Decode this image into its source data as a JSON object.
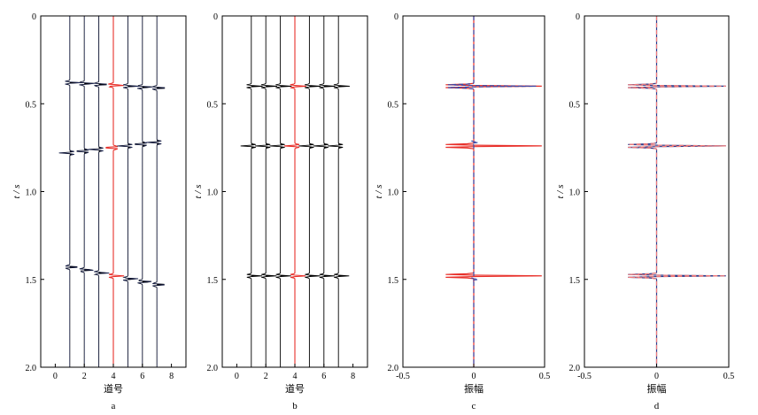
{
  "chart_data": [
    {
      "type": "line",
      "panel_label": "a",
      "xlabel": "道号",
      "ylabel": "t / s",
      "xlim": [
        -1,
        9
      ],
      "ylim": [
        2.0,
        0
      ],
      "x_ticks": [
        "0",
        "2",
        "4",
        "6",
        "8"
      ],
      "y_ticks": [
        "0",
        "0.5",
        "1.0",
        "1.5",
        "2.0"
      ],
      "traces": [
        1,
        2,
        3,
        4,
        5,
        6,
        7
      ],
      "highlight_trace": 4,
      "events": [
        {
          "t_start": 0.38,
          "t_end": 0.41,
          "amp": 0.95,
          "width": 0.018
        },
        {
          "t_start": 0.78,
          "t_end": 0.72,
          "amp": -0.9,
          "width": 0.018
        },
        {
          "t_start": 1.43,
          "t_end": 1.53,
          "amp": 0.9,
          "width": 0.018
        }
      ],
      "colors": {
        "trace": "#000000",
        "highlight": "#e8302a",
        "outline": "#2e3d8c"
      }
    },
    {
      "type": "line",
      "panel_label": "b",
      "xlabel": "道号",
      "ylabel": "t / s",
      "xlim": [
        -1,
        9
      ],
      "ylim": [
        2.0,
        0
      ],
      "x_ticks": [
        "0",
        "2",
        "4",
        "6",
        "8"
      ],
      "y_ticks": [
        "0",
        "0.5",
        "1.0",
        "1.5",
        "2.0"
      ],
      "traces": [
        1,
        2,
        3,
        4,
        5,
        6,
        7
      ],
      "highlight_trace": 4,
      "events": [
        {
          "t_start": 0.4,
          "t_end": 0.4,
          "amp": 0.95,
          "width": 0.018
        },
        {
          "t_start": 0.74,
          "t_end": 0.74,
          "amp": -0.9,
          "width": 0.018
        },
        {
          "t_start": 1.48,
          "t_end": 1.48,
          "amp": 0.9,
          "width": 0.018
        }
      ],
      "colors": {
        "trace": "#000000",
        "highlight": "#e8302a"
      }
    },
    {
      "type": "line",
      "panel_label": "c",
      "xlabel": "振幅",
      "ylabel": "t / s",
      "xlim": [
        -0.5,
        0.5
      ],
      "ylim": [
        2.0,
        0
      ],
      "x_ticks": [
        "-0.5",
        "0",
        "0.5"
      ],
      "y_ticks": [
        "0",
        "0.5",
        "1.0",
        "1.5",
        "2.0"
      ],
      "series": [
        {
          "style": "solid",
          "color": "#e8302a",
          "events": [
            {
              "t": 0.4,
              "amp": 0.48
            },
            {
              "t": 0.74,
              "amp": 0.48
            },
            {
              "t": 1.48,
              "amp": 0.48
            }
          ]
        },
        {
          "style": "dashed",
          "color": "#3a4aa8",
          "events": [
            {
              "t": 0.4,
              "amp": 0.44
            },
            {
              "t": 0.72,
              "amp": 0.03
            },
            {
              "t": 1.5,
              "amp": 0.03
            }
          ]
        }
      ]
    },
    {
      "type": "line",
      "panel_label": "d",
      "xlabel": "振幅",
      "ylabel": "t / s",
      "xlim": [
        -0.5,
        0.5
      ],
      "ylim": [
        2.0,
        0
      ],
      "x_ticks": [
        "-0.5",
        "0",
        "0.5"
      ],
      "y_ticks": [
        "0",
        "0.5",
        "1.0",
        "1.5",
        "2.0"
      ],
      "series": [
        {
          "style": "solid",
          "color": "#2e3d8c",
          "events": [
            {
              "t": 0.4,
              "amp": 0.48
            },
            {
              "t": 0.74,
              "amp": 0.48
            },
            {
              "t": 1.48,
              "amp": 0.48
            }
          ]
        },
        {
          "style": "dashed",
          "color": "#f07a7a",
          "events": [
            {
              "t": 0.4,
              "amp": 0.48
            },
            {
              "t": 0.74,
              "amp": 0.48
            },
            {
              "t": 1.48,
              "amp": 0.48
            }
          ]
        }
      ]
    }
  ]
}
